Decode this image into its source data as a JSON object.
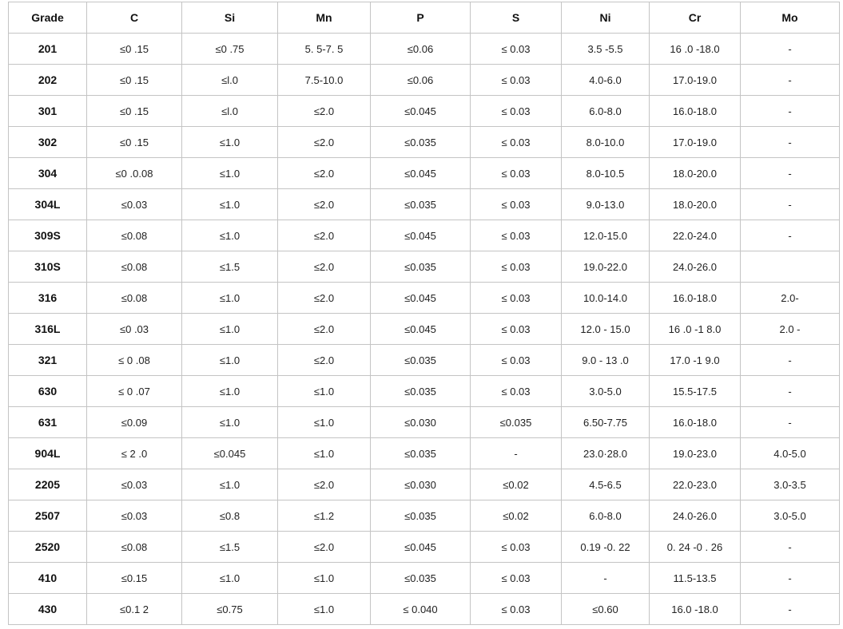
{
  "table": {
    "headers": [
      "Grade",
      "C",
      "Si",
      "Mn",
      "P",
      "S",
      "Ni",
      "Cr",
      "Mo"
    ],
    "rows": [
      [
        "201",
        "≤0 .15",
        "≤0 .75",
        "5. 5-7. 5",
        "≤0.06",
        "≤ 0.03",
        "3.5 -5.5",
        "16 .0 -18.0",
        "-"
      ],
      [
        "202",
        "≤0 .15",
        "≤l.0",
        "7.5-10.0",
        "≤0.06",
        "≤ 0.03",
        "4.0-6.0",
        "17.0-19.0",
        "-"
      ],
      [
        "301",
        "≤0 .15",
        "≤l.0",
        "≤2.0",
        "≤0.045",
        "≤ 0.03",
        "6.0-8.0",
        "16.0-18.0",
        "-"
      ],
      [
        "302",
        "≤0 .15",
        "≤1.0",
        "≤2.0",
        "≤0.035",
        "≤ 0.03",
        "8.0-10.0",
        "17.0-19.0",
        "-"
      ],
      [
        "304",
        "≤0 .0.08",
        "≤1.0",
        "≤2.0",
        "≤0.045",
        "≤ 0.03",
        "8.0-10.5",
        "18.0-20.0",
        "-"
      ],
      [
        "304L",
        "≤0.03",
        "≤1.0",
        "≤2.0",
        "≤0.035",
        "≤ 0.03",
        "9.0-13.0",
        "18.0-20.0",
        "-"
      ],
      [
        "309S",
        "≤0.08",
        "≤1.0",
        "≤2.0",
        "≤0.045",
        "≤ 0.03",
        "12.0-15.0",
        "22.0-24.0",
        "-"
      ],
      [
        "310S",
        "≤0.08",
        "≤1.5",
        "≤2.0",
        "≤0.035",
        "≤ 0.03",
        "19.0-22.0",
        "24.0-26.0",
        ""
      ],
      [
        "316",
        "≤0.08",
        "≤1.0",
        "≤2.0",
        "≤0.045",
        "≤ 0.03",
        "10.0-14.0",
        "16.0-18.0",
        "2.0-"
      ],
      [
        "316L",
        "≤0 .03",
        "≤1.0",
        "≤2.0",
        "≤0.045",
        "≤ 0.03",
        "12.0 - 15.0",
        "16 .0 -1 8.0",
        "2.0 -"
      ],
      [
        "321",
        "≤ 0 .08",
        "≤1.0",
        "≤2.0",
        "≤0.035",
        "≤ 0.03",
        "9.0 - 13 .0",
        "17.0 -1 9.0",
        "-"
      ],
      [
        "630",
        "≤ 0 .07",
        "≤1.0",
        "≤1.0",
        "≤0.035",
        "≤ 0.03",
        "3.0-5.0",
        "15.5-17.5",
        "-"
      ],
      [
        "631",
        "≤0.09",
        "≤1.0",
        "≤1.0",
        "≤0.030",
        "≤0.035",
        "6.50-7.75",
        "16.0-18.0",
        "-"
      ],
      [
        "904L",
        "≤ 2 .0",
        "≤0.045",
        "≤1.0",
        "≤0.035",
        "-",
        "23.0·28.0",
        "19.0-23.0",
        "4.0-5.0"
      ],
      [
        "2205",
        "≤0.03",
        "≤1.0",
        "≤2.0",
        "≤0.030",
        "≤0.02",
        "4.5-6.5",
        "22.0-23.0",
        "3.0-3.5"
      ],
      [
        "2507",
        "≤0.03",
        "≤0.8",
        "≤1.2",
        "≤0.035",
        "≤0.02",
        "6.0-8.0",
        "24.0-26.0",
        "3.0-5.0"
      ],
      [
        "2520",
        "≤0.08",
        "≤1.5",
        "≤2.0",
        "≤0.045",
        "≤ 0.03",
        "0.19 -0. 22",
        "0. 24 -0 . 26",
        "-"
      ],
      [
        "410",
        "≤0.15",
        "≤1.0",
        "≤1.0",
        "≤0.035",
        "≤ 0.03",
        "-",
        "11.5-13.5",
        "-"
      ],
      [
        "430",
        "≤0.1 2",
        "≤0.75",
        "≤1.0",
        "≤ 0.040",
        "≤ 0.03",
        "≤0.60",
        "16.0 -18.0",
        "-"
      ]
    ]
  }
}
